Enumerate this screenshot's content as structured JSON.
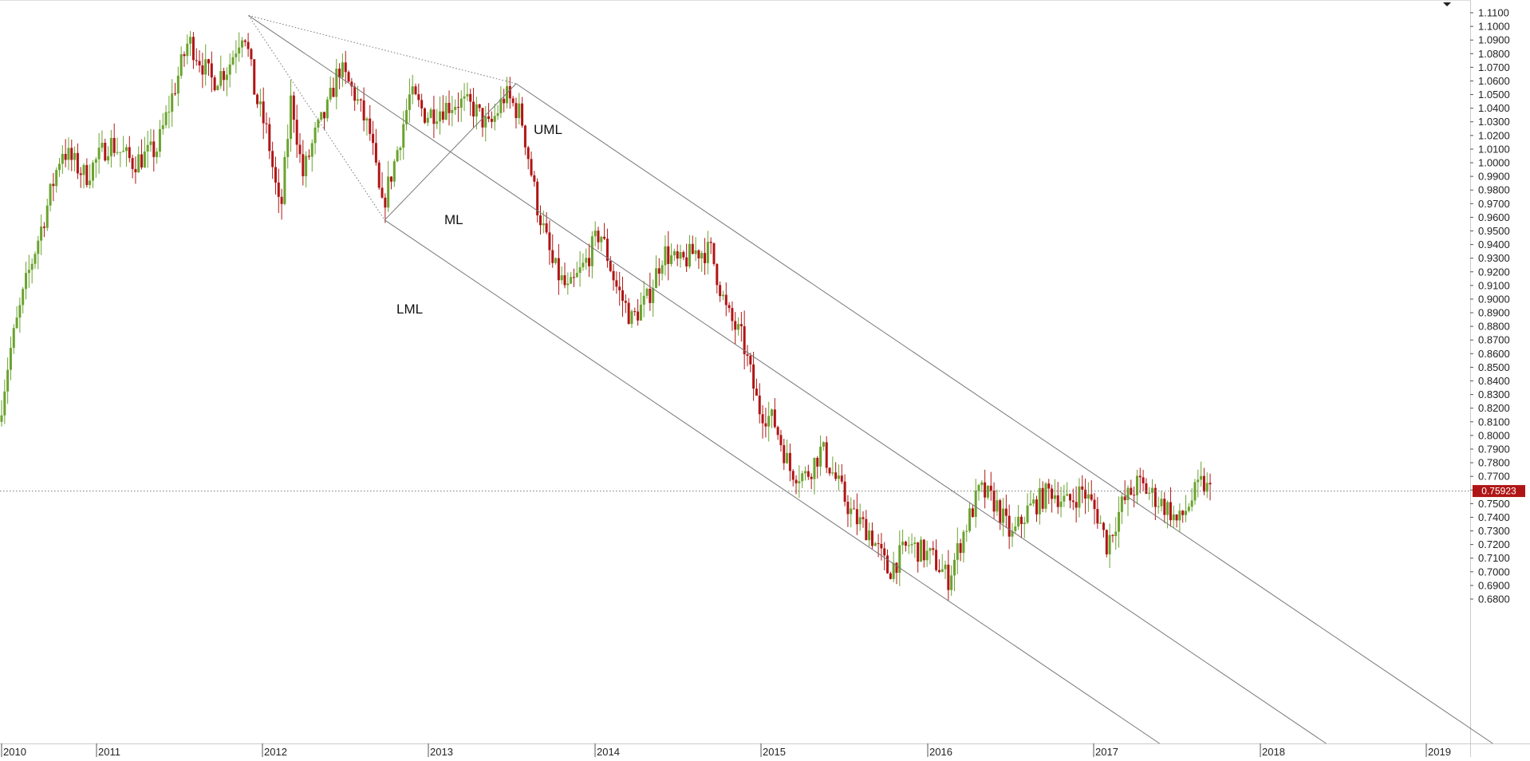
{
  "chart_data": {
    "type": "candlestick",
    "title": "",
    "xlabel": "",
    "ylabel": "",
    "ylim": [
      0.675,
      1.115
    ],
    "xlim": [
      2010.0,
      2019.2
    ],
    "yticks": [
      "1.1100",
      "1.1000",
      "1.0900",
      "1.0800",
      "1.0700",
      "1.0600",
      "1.0500",
      "1.0400",
      "1.0300",
      "1.0200",
      "1.0100",
      "1.0000",
      "0.9900",
      "0.9800",
      "0.9700",
      "0.9600",
      "0.9500",
      "0.9400",
      "0.9300",
      "0.9200",
      "0.9100",
      "0.9000",
      "0.8900",
      "0.8800",
      "0.8700",
      "0.8600",
      "0.8500",
      "0.8400",
      "0.8300",
      "0.8200",
      "0.8100",
      "0.8000",
      "0.7900",
      "0.7800",
      "0.7700",
      "0.7600",
      "0.7500",
      "0.7400",
      "0.7300",
      "0.7200",
      "0.7100",
      "0.7000",
      "0.6900",
      "0.6800"
    ],
    "xticks": [
      "2010",
      "2011",
      "2012",
      "2013",
      "2014",
      "2015",
      "2016",
      "2017",
      "2018",
      "2019"
    ],
    "last_price": "0.75923",
    "last_price_value": 0.75923,
    "colors": {
      "up": "#6aa32e",
      "down": "#b01515",
      "grid": "#cccccc",
      "price_badge": "#b01515",
      "channel_line": "#777777"
    },
    "price_path": [
      [
        2010.0,
        0.81
      ],
      [
        2010.07,
        0.86
      ],
      [
        2010.18,
        0.915
      ],
      [
        2010.3,
        0.965
      ],
      [
        2010.4,
        1.01
      ],
      [
        2010.55,
        0.99
      ],
      [
        2010.7,
        1.015
      ],
      [
        2010.85,
        1.0
      ],
      [
        2011.0,
        1.01
      ],
      [
        2011.1,
        1.05
      ],
      [
        2011.2,
        1.09
      ],
      [
        2011.35,
        1.06
      ],
      [
        2011.45,
        1.07
      ],
      [
        2011.55,
        1.1
      ],
      [
        2011.62,
        1.05
      ],
      [
        2011.7,
        1.02
      ],
      [
        2011.78,
        0.96
      ],
      [
        2011.85,
        1.05
      ],
      [
        2011.92,
        0.99
      ],
      [
        2012.0,
        1.02
      ],
      [
        2012.08,
        1.04
      ],
      [
        2012.15,
        1.07
      ],
      [
        2012.25,
        1.05
      ],
      [
        2012.35,
        1.02
      ],
      [
        2012.42,
        0.965
      ],
      [
        2012.5,
        1.0
      ],
      [
        2012.6,
        1.05
      ],
      [
        2012.7,
        1.035
      ],
      [
        2012.8,
        1.04
      ],
      [
        2012.9,
        1.045
      ],
      [
        2013.0,
        1.04
      ],
      [
        2013.1,
        1.025
      ],
      [
        2013.2,
        1.05
      ],
      [
        2013.3,
        1.035
      ],
      [
        2013.4,
        0.97
      ],
      [
        2013.5,
        0.925
      ],
      [
        2013.6,
        0.905
      ],
      [
        2013.7,
        0.925
      ],
      [
        2013.8,
        0.95
      ],
      [
        2013.9,
        0.91
      ],
      [
        2014.0,
        0.885
      ],
      [
        2014.1,
        0.9
      ],
      [
        2014.2,
        0.935
      ],
      [
        2014.3,
        0.925
      ],
      [
        2014.4,
        0.935
      ],
      [
        2014.5,
        0.935
      ],
      [
        2014.6,
        0.89
      ],
      [
        2014.7,
        0.87
      ],
      [
        2014.8,
        0.82
      ],
      [
        2014.9,
        0.81
      ],
      [
        2015.0,
        0.775
      ],
      [
        2015.1,
        0.77
      ],
      [
        2015.2,
        0.79
      ],
      [
        2015.3,
        0.765
      ],
      [
        2015.4,
        0.74
      ],
      [
        2015.5,
        0.73
      ],
      [
        2015.62,
        0.7
      ],
      [
        2015.75,
        0.72
      ],
      [
        2015.9,
        0.71
      ],
      [
        2016.0,
        0.695
      ],
      [
        2016.1,
        0.73
      ],
      [
        2016.2,
        0.76
      ],
      [
        2016.3,
        0.75
      ],
      [
        2016.4,
        0.725
      ],
      [
        2016.5,
        0.745
      ],
      [
        2016.65,
        0.76
      ],
      [
        2016.75,
        0.75
      ],
      [
        2016.85,
        0.76
      ],
      [
        2016.95,
        0.74
      ],
      [
        2017.0,
        0.72
      ],
      [
        2017.1,
        0.75
      ],
      [
        2017.2,
        0.765
      ],
      [
        2017.3,
        0.755
      ],
      [
        2017.4,
        0.745
      ],
      [
        2017.45,
        0.735
      ],
      [
        2017.52,
        0.75
      ],
      [
        2017.6,
        0.765
      ],
      [
        2017.65,
        0.759
      ]
    ],
    "pitchfork": {
      "pivot_a": [
        2011.56,
        1.108
      ],
      "pivot_b": [
        2012.42,
        0.958
      ],
      "pivot_c": [
        2013.25,
        1.058
      ],
      "line_labels": {
        "upper": "UML",
        "median": "ML",
        "lower": "LML"
      }
    }
  }
}
